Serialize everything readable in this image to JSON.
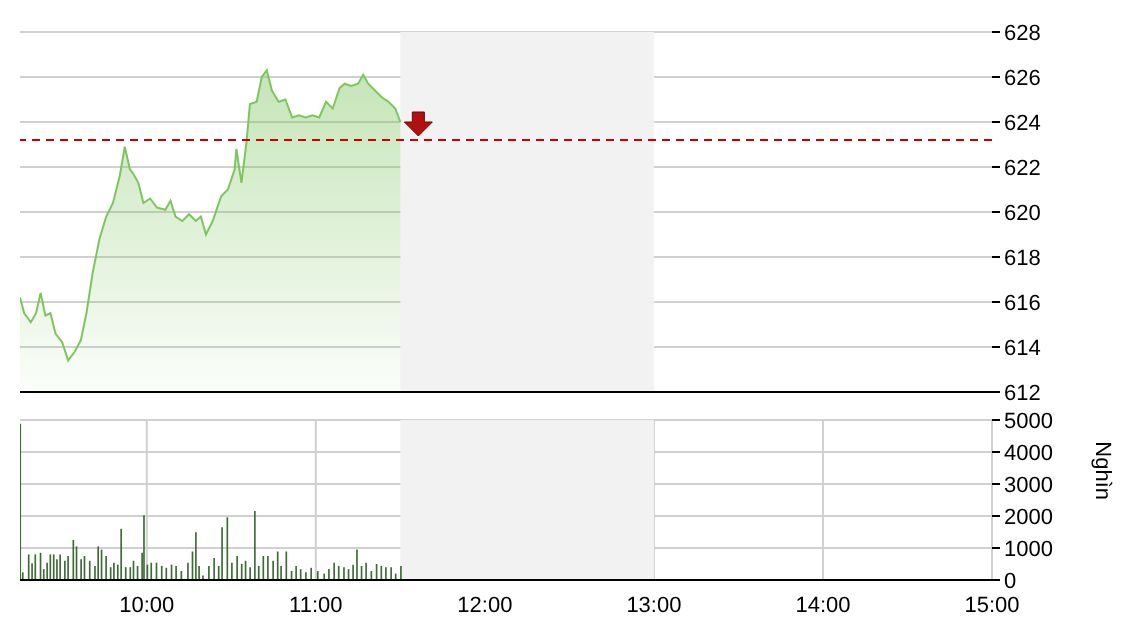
{
  "chart_data": [
    {
      "type": "area",
      "xlim": [
        9.25,
        15
      ],
      "xticks": [
        {
          "value": 10,
          "label": null
        },
        {
          "value": 11,
          "label": null
        },
        {
          "value": 12,
          "label": null
        },
        {
          "value": 13,
          "label": null
        },
        {
          "value": 14,
          "label": null
        },
        {
          "value": 15,
          "label": null
        }
      ],
      "ylim": [
        612,
        628
      ],
      "yticks": [
        612,
        614,
        616,
        618,
        620,
        622,
        624,
        626,
        628
      ],
      "tick_labels": "y",
      "grid": true,
      "legend": false,
      "ref_lines": [
        {
          "axis": "y",
          "value": 623.2,
          "color": "#cc0000",
          "line_style": "dashed"
        }
      ],
      "bands": [
        {
          "axis": "x",
          "from": 11.5,
          "to": 13,
          "color": "#f2f2f2"
        }
      ],
      "series": [
        {
          "color": "#7dc55e",
          "x": [
            9.25,
            9.275,
            9.314,
            9.345,
            9.372,
            9.4,
            9.43,
            9.46,
            9.5,
            9.535,
            9.574,
            9.61,
            9.643,
            9.68,
            9.72,
            9.76,
            9.8,
            9.84,
            9.87,
            9.9,
            9.92,
            9.95,
            9.98,
            10.02,
            10.06,
            10.11,
            10.14,
            10.17,
            10.21,
            10.25,
            10.29,
            10.32,
            10.35,
            10.39,
            10.44,
            10.48,
            10.52,
            10.53,
            10.56,
            10.59,
            10.61,
            10.65,
            10.68,
            10.71,
            10.74,
            10.78,
            10.82,
            10.86,
            10.9,
            10.94,
            10.98,
            11.02,
            11.06,
            11.1,
            11.14,
            11.17,
            11.21,
            11.25,
            11.28,
            11.31,
            11.35,
            11.39,
            11.43,
            11.47,
            11.5
          ],
          "values": [
            616.2,
            615.5,
            615.1,
            615.5,
            616.4,
            615.4,
            615.5,
            614.6,
            614.2,
            613.4,
            613.8,
            614.3,
            615.5,
            617.3,
            618.8,
            619.8,
            620.4,
            621.6,
            622.9,
            621.9,
            621.7,
            621.3,
            620.4,
            620.6,
            620.2,
            620.1,
            620.5,
            619.8,
            619.6,
            619.9,
            619.6,
            619.8,
            619.0,
            619.6,
            620.7,
            621.0,
            621.9,
            622.8,
            621.3,
            623.1,
            624.8,
            624.9,
            626.0,
            626.3,
            625.4,
            624.9,
            625.0,
            624.2,
            624.3,
            624.2,
            624.3,
            624.2,
            624.9,
            624.6,
            625.5,
            625.7,
            625.6,
            625.7,
            626.1,
            625.7,
            625.4,
            625.1,
            624.9,
            624.6,
            624.0
          ]
        }
      ]
    },
    {
      "type": "bar",
      "ylabel": "Nghìn",
      "xlim": [
        9.25,
        15
      ],
      "xticks": [
        {
          "value": 10,
          "label": "10:00"
        },
        {
          "value": 11,
          "label": "11:00"
        },
        {
          "value": 12,
          "label": "12:00"
        },
        {
          "value": 13,
          "label": "13:00"
        },
        {
          "value": 14,
          "label": "14:00"
        },
        {
          "value": 15,
          "label": "15:00"
        }
      ],
      "ylim": [
        0,
        5000
      ],
      "yticks": [
        0,
        1000,
        2000,
        3000,
        4000,
        5000
      ],
      "grid": true,
      "legend": false,
      "bands": [
        {
          "axis": "x",
          "from": 11.5,
          "to": 13,
          "color": "#f2f2f2"
        }
      ],
      "series": [
        {
          "color": "#3d6b35",
          "x": [
            9.252,
            9.267,
            9.302,
            9.322,
            9.341,
            9.372,
            9.391,
            9.411,
            9.43,
            9.45,
            9.469,
            9.488,
            9.516,
            9.535,
            9.566,
            9.585,
            9.612,
            9.632,
            9.663,
            9.694,
            9.713,
            9.733,
            9.76,
            9.787,
            9.806,
            9.829,
            9.849,
            9.876,
            9.903,
            9.922,
            9.946,
            9.973,
            9.984,
            10.004,
            10.027,
            10.058,
            10.089,
            10.116,
            10.147,
            10.174,
            10.205,
            10.244,
            10.271,
            10.291,
            10.31,
            10.333,
            10.368,
            10.399,
            10.426,
            10.446,
            10.477,
            10.504,
            10.535,
            10.562,
            10.585,
            10.612,
            10.64,
            10.663,
            10.69,
            10.717,
            10.748,
            10.775,
            10.795,
            10.826,
            10.857,
            10.884,
            10.911,
            10.942,
            10.973,
            11.012,
            11.05,
            11.078,
            11.109,
            11.136,
            11.167,
            11.194,
            11.221,
            11.244,
            11.271,
            11.298,
            11.329,
            11.36,
            11.388,
            11.415,
            11.446,
            11.473,
            11.504
          ],
          "values": [
            4880,
            240,
            800,
            520,
            800,
            850,
            340,
            540,
            800,
            800,
            650,
            800,
            600,
            750,
            1250,
            1050,
            650,
            750,
            600,
            440,
            1050,
            950,
            750,
            400,
            540,
            480,
            1600,
            400,
            400,
            600,
            440,
            850,
            2020,
            480,
            540,
            540,
            440,
            380,
            480,
            440,
            280,
            540,
            890,
            1490,
            440,
            140,
            440,
            690,
            440,
            1650,
            1960,
            540,
            750,
            500,
            600,
            400,
            2160,
            440,
            750,
            750,
            600,
            890,
            440,
            890,
            280,
            440,
            340,
            240,
            380,
            280,
            200,
            340,
            540,
            440,
            400,
            340,
            480,
            950,
            440,
            540,
            280,
            500,
            440,
            400,
            400,
            200,
            440
          ]
        }
      ]
    }
  ]
}
